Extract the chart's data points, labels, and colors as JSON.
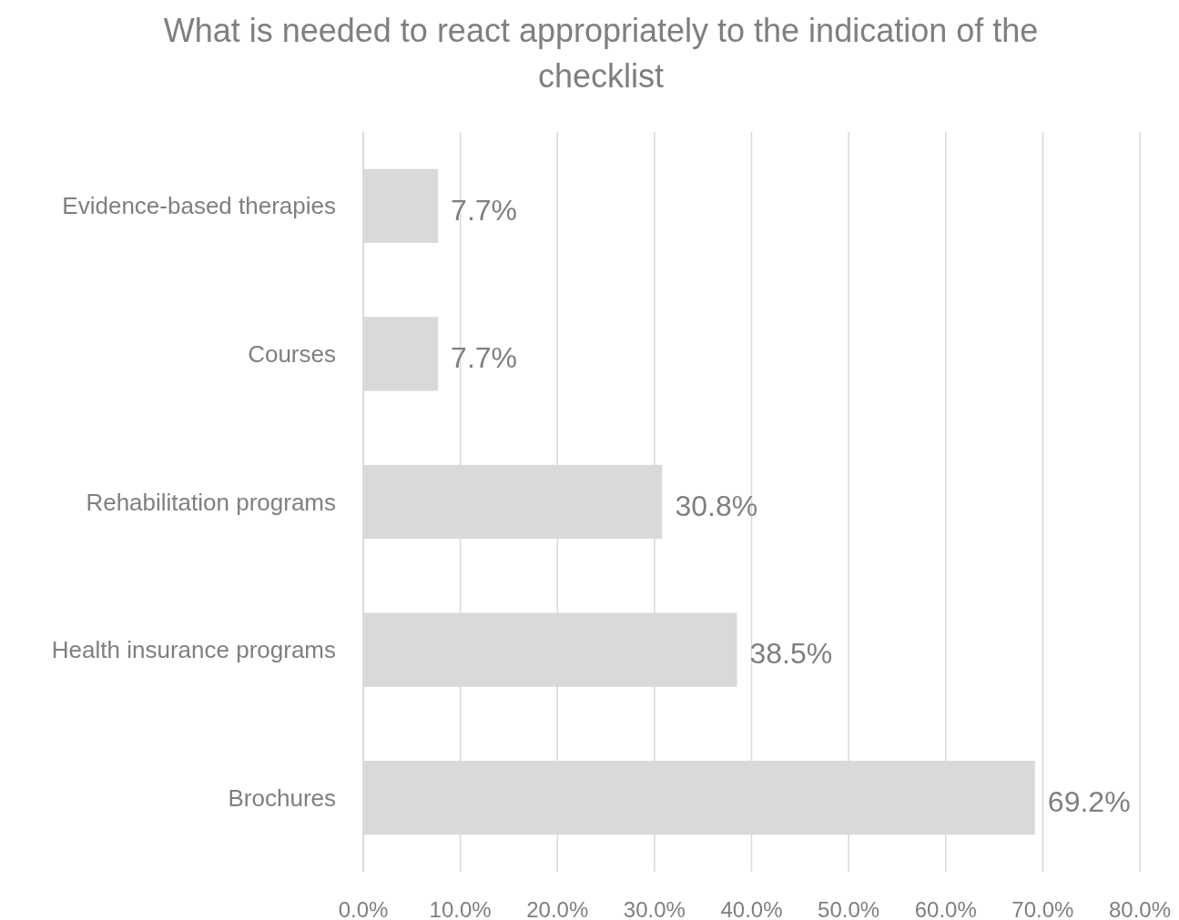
{
  "chart_data": {
    "type": "bar",
    "orientation": "horizontal",
    "title": "What is needed to react appropriately to the indication of the checklist",
    "categories": [
      "Evidence-based therapies",
      "Courses",
      "Rehabilitation programs",
      "Health insurance programs",
      "Brochures"
    ],
    "values": [
      7.7,
      7.7,
      30.8,
      38.5,
      69.2
    ],
    "value_labels": [
      "7.7%",
      "7.7%",
      "30.8%",
      "38.5%",
      "69.2%"
    ],
    "color": "#d9d9d9",
    "xlim": [
      0,
      80
    ],
    "xticks": [
      {
        "value": 0,
        "label": "0.0%"
      },
      {
        "value": 10,
        "label": "10.0%"
      },
      {
        "value": 20,
        "label": "20.0%"
      },
      {
        "value": 30,
        "label": "30.0%"
      },
      {
        "value": 40,
        "label": "40.0%"
      },
      {
        "value": 50,
        "label": "50.0%"
      },
      {
        "value": 60,
        "label": "60.0%"
      },
      {
        "value": 70,
        "label": "70.0%"
      },
      {
        "value": 80,
        "label": "80.0%"
      }
    ],
    "grid": "x"
  }
}
